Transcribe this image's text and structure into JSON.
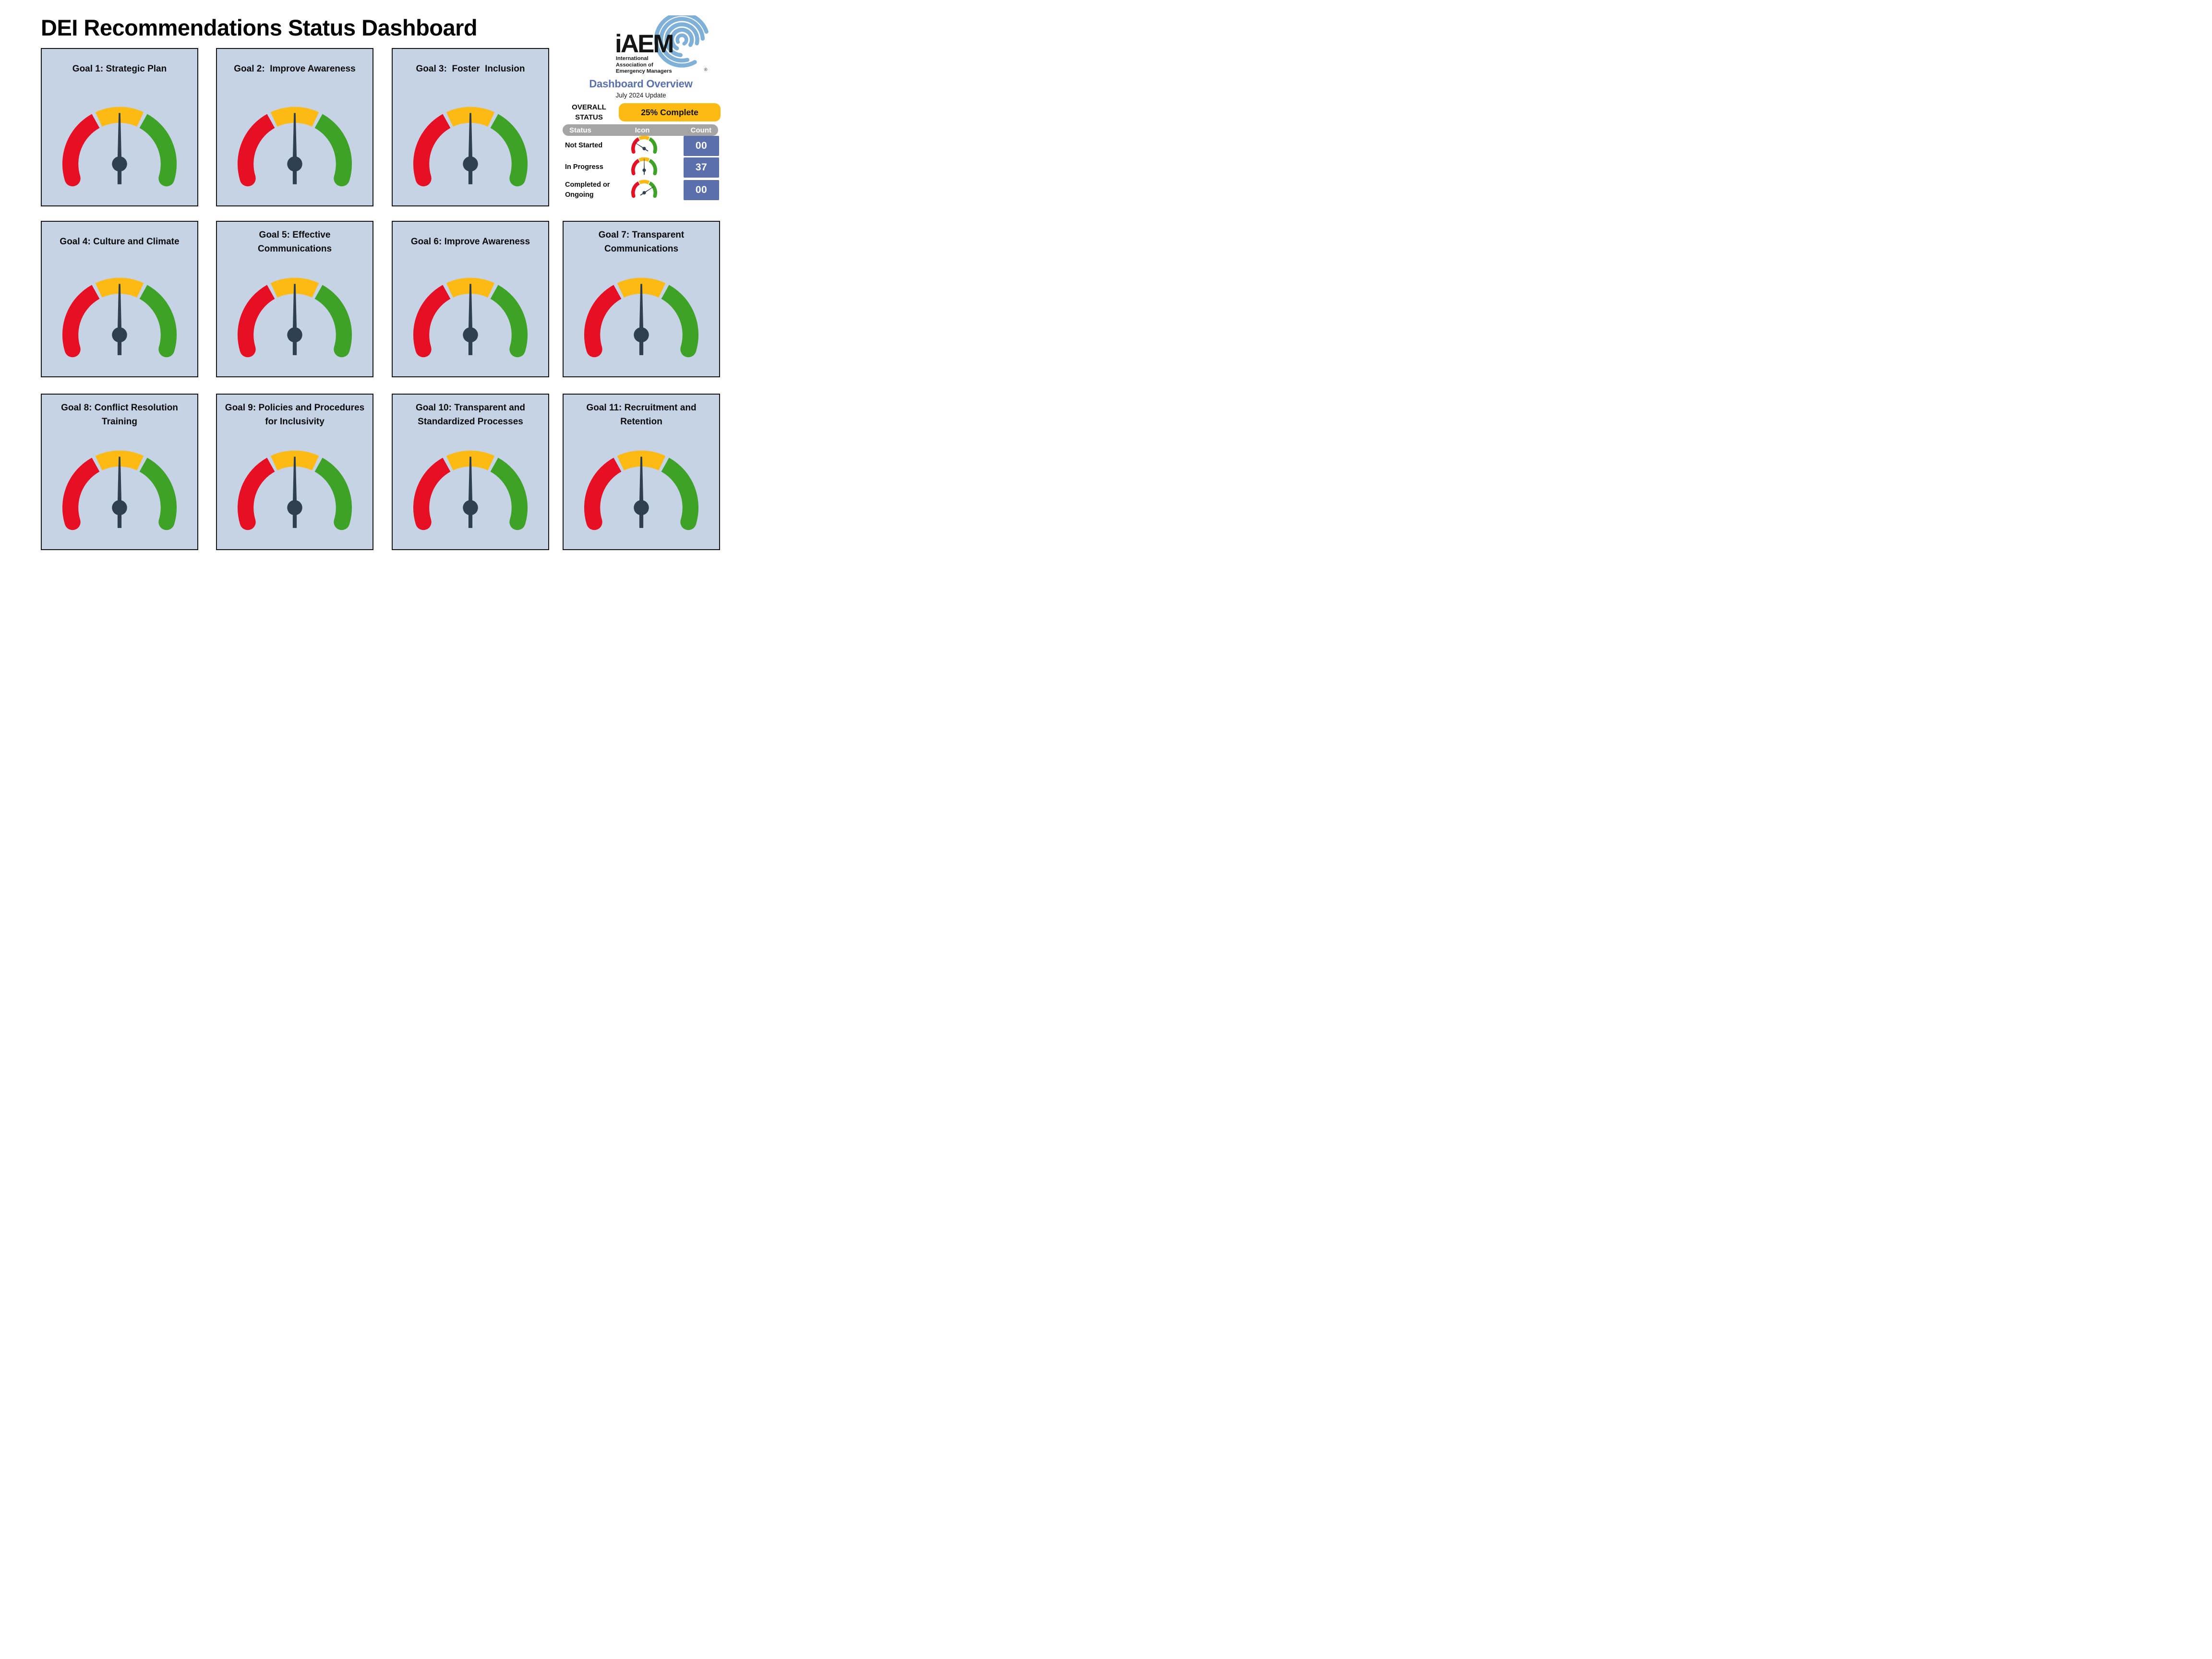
{
  "page": {
    "title": "DEI Recommendations Status Dashboard"
  },
  "logo": {
    "brand": "iAEM",
    "registered": "®",
    "org_line1": "International",
    "org_line2": "Association of",
    "org_line3": "Emergency Managers"
  },
  "overview": {
    "heading": "Dashboard Overview",
    "subheading": "July 2024 Update",
    "overall_label_line1": "OVERALL",
    "overall_label_line2": "STATUS",
    "overall_value": "25% Complete",
    "col_status": "Status",
    "col_icon": "Icon",
    "col_count": "Count",
    "rows": [
      {
        "status": "Not Started",
        "icon": "gauge-needle-low-icon",
        "needle_angle": -57,
        "count": "00"
      },
      {
        "status": "In Progress",
        "icon": "gauge-needle-mid-icon",
        "needle_angle": 0,
        "count": "37"
      },
      {
        "status": "Completed or Ongoing",
        "icon": "gauge-needle-high-icon",
        "needle_angle": 57,
        "count": "00"
      }
    ]
  },
  "goals": [
    {
      "id": 1,
      "title": "Goal 1: Strategic Plan",
      "needle_angle": 0
    },
    {
      "id": 2,
      "title": "Goal 2:  Improve Awareness",
      "needle_angle": 0
    },
    {
      "id": 3,
      "title": "Goal 3:  Foster  Inclusion",
      "needle_angle": 0
    },
    {
      "id": 4,
      "title": "Goal 4: Culture and Climate",
      "needle_angle": 0
    },
    {
      "id": 5,
      "title": "Goal 5: Effective Communications",
      "needle_angle": 0
    },
    {
      "id": 6,
      "title": "Goal 6: Improve Awareness",
      "needle_angle": 0
    },
    {
      "id": 7,
      "title": "Goal 7: Transparent Communications",
      "needle_angle": 0
    },
    {
      "id": 8,
      "title": "Goal 8: Conflict Resolution Training",
      "needle_angle": 0
    },
    {
      "id": 9,
      "title": "Goal 9: Policies and Procedures for Inclusivity",
      "needle_angle": 0
    },
    {
      "id": 10,
      "title": "Goal 10: Transparent and Standardized Processes",
      "needle_angle": 0
    },
    {
      "id": 11,
      "title": "Goal 11: Recruitment and Retention",
      "needle_angle": 0
    }
  ],
  "colors": {
    "red": "#e60f23",
    "yellow": "#fcba12",
    "green": "#3da226",
    "needle": "#2f3e50",
    "card_bg": "#c5d3e5",
    "accent_blue": "#5a6fae",
    "count_box": "#5b6fad",
    "header_gray": "#a5a5a5",
    "logo_blue": "#7fb0d8",
    "overall_pill": "#fcba12"
  },
  "chart_data": {
    "type": "gauge",
    "title": "DEI Recommendations Status Dashboard",
    "subtitle": "Dashboard Overview — July 2024 Update",
    "overall_percent_complete": 25,
    "status_counts": [
      {
        "status": "Not Started",
        "count": 0
      },
      {
        "status": "In Progress",
        "count": 37
      },
      {
        "status": "Completed or Ongoing",
        "count": 0
      }
    ],
    "scale_segments": [
      "Not Started (red)",
      "In Progress (yellow)",
      "Completed or Ongoing (green)"
    ],
    "gauges": [
      {
        "label": "Goal 1: Strategic Plan",
        "reading": "middle (In Progress)"
      },
      {
        "label": "Goal 2: Improve Awareness",
        "reading": "middle (In Progress)"
      },
      {
        "label": "Goal 3: Foster Inclusion",
        "reading": "middle (In Progress)"
      },
      {
        "label": "Goal 4: Culture and Climate",
        "reading": "middle (In Progress)"
      },
      {
        "label": "Goal 5: Effective Communications",
        "reading": "middle (In Progress)"
      },
      {
        "label": "Goal 6: Improve Awareness",
        "reading": "middle (In Progress)"
      },
      {
        "label": "Goal 7: Transparent Communications",
        "reading": "middle (In Progress)"
      },
      {
        "label": "Goal 8: Conflict Resolution Training",
        "reading": "middle (In Progress)"
      },
      {
        "label": "Goal 9: Policies and Procedures for Inclusivity",
        "reading": "middle (In Progress)"
      },
      {
        "label": "Goal 10: Transparent and Standardized Processes",
        "reading": "middle (In Progress)"
      },
      {
        "label": "Goal 11: Recruitment and Retention",
        "reading": "middle (In Progress)"
      }
    ]
  }
}
